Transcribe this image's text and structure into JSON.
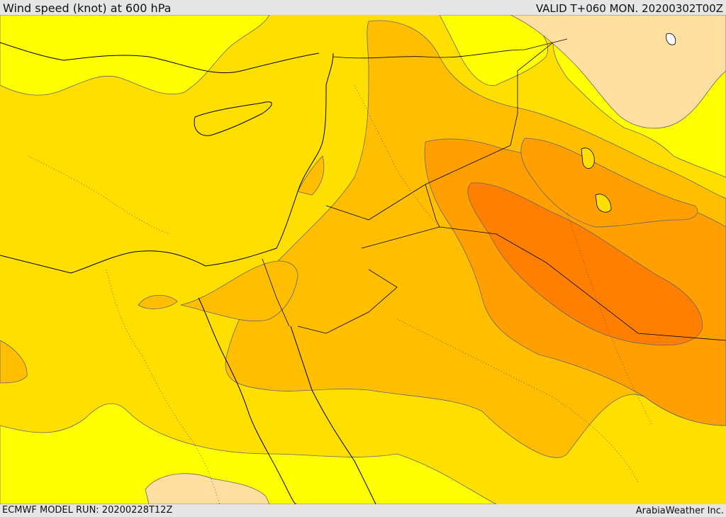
{
  "header": {
    "title": "Wind speed (knot) at 600 hPa",
    "valid_time": "VALID T+060 MON. 20200302T00Z"
  },
  "footer": {
    "model_run": "ECMWF MODEL RUN: 20200228T12Z",
    "provider": "ArabiaWeather Inc."
  },
  "map": {
    "colors": {
      "band_lowest": "#ffdfa0",
      "band_low": "#ffff00",
      "band_mid": "#ffdf00",
      "band_mid_high": "#ffbf00",
      "band_high": "#ff9f00",
      "band_highest": "#ff7f00",
      "coastline": "#000000",
      "contour": "#666666"
    }
  }
}
